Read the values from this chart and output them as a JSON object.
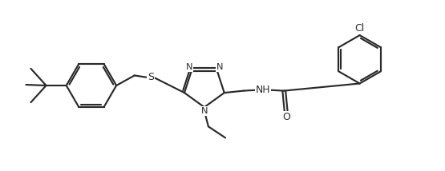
{
  "background_color": "#ffffff",
  "line_color": "#2a2a2a",
  "line_width": 1.55,
  "figsize": [
    5.55,
    2.14
  ],
  "dpi": 100,
  "xlim": [
    -0.5,
    10.5
  ],
  "ylim": [
    -0.2,
    4.0
  ]
}
